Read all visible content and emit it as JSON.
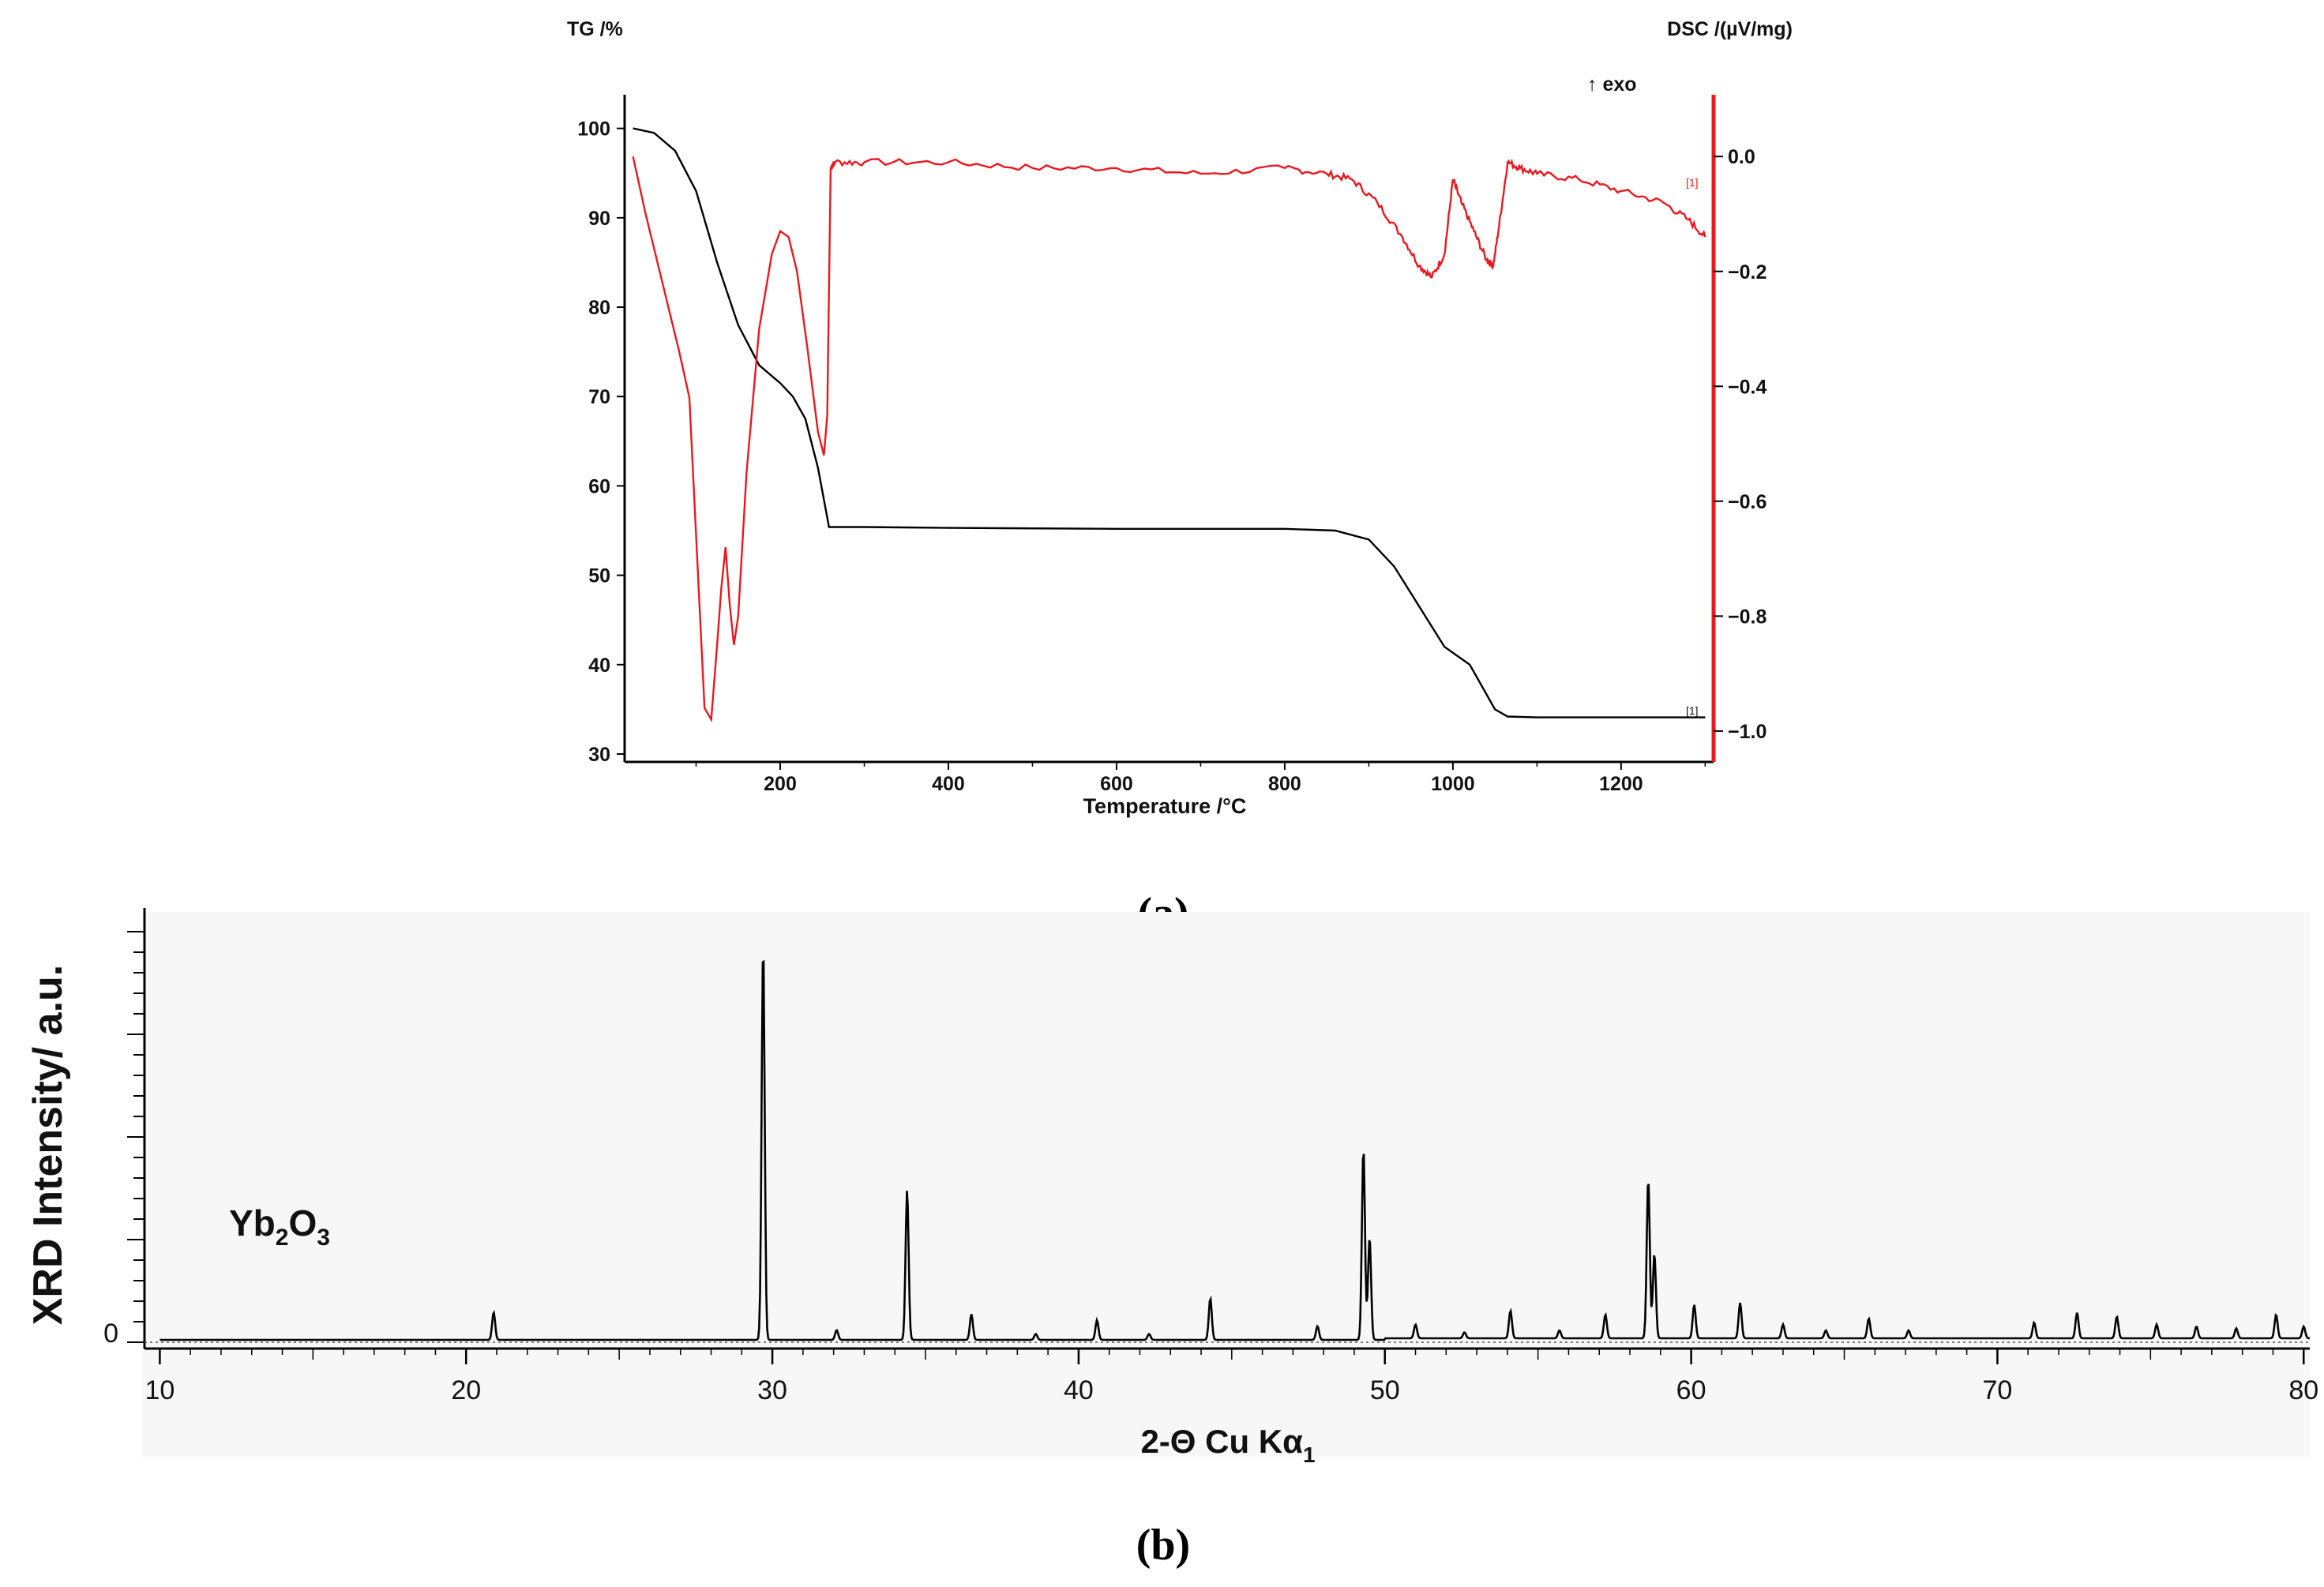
{
  "colors": {
    "tg": "#000000",
    "dsc": "#e8191f",
    "axis": "#000000",
    "xrd": "#000000"
  },
  "chart_data": [
    {
      "type": "line",
      "panel_label": "(a)",
      "xlabel": "Temperature /°C",
      "ylabel_left": "TG /%",
      "ylabel_right": "DSC /(µV/mg)",
      "annotation": "↑ exo",
      "curve_marker": "[1]",
      "xlim": [
        15,
        1310
      ],
      "x_ticks": [
        200,
        400,
        600,
        800,
        1000,
        1200
      ],
      "ylim_left": [
        30,
        102
      ],
      "y_ticks_left": [
        30,
        40,
        50,
        60,
        70,
        80,
        90,
        100
      ],
      "ylim_right": [
        -1.04,
        0.08
      ],
      "y_ticks_right": [
        0.0,
        -0.2,
        -0.4,
        -0.6,
        -0.8,
        -1.0
      ],
      "y_tick_labels_right": [
        "0.0",
        "−0.2",
        "−0.4",
        "−0.6",
        "−0.8",
        "−1.0"
      ],
      "series": [
        {
          "name": "TG",
          "axis": "left",
          "x": [
            25,
            50,
            75,
            100,
            125,
            150,
            175,
            200,
            215,
            230,
            245,
            258,
            300,
            400,
            600,
            800,
            860,
            900,
            930,
            960,
            990,
            1005,
            1020,
            1035,
            1050,
            1065,
            1100,
            1300
          ],
          "y": [
            100,
            99.5,
            97.5,
            93,
            85,
            78,
            73.5,
            71.5,
            70.0,
            67.5,
            62,
            55.4,
            55.4,
            55.3,
            55.2,
            55.2,
            55.0,
            54.0,
            51.0,
            46.5,
            42.0,
            41.0,
            40.0,
            37.5,
            35.0,
            34.2,
            34.1,
            34.1
          ]
        },
        {
          "name": "DSC",
          "axis": "right",
          "x": [
            25,
            40,
            60,
            80,
            92,
            100,
            110,
            118,
            125,
            130,
            135,
            140,
            145,
            150,
            160,
            175,
            190,
            200,
            210,
            220,
            232,
            245,
            252,
            256,
            260,
            265,
            300,
            400,
            500,
            600,
            700,
            800,
            850,
            880,
            910,
            940,
            960,
            975,
            990,
            1000,
            1010,
            1025,
            1040,
            1048,
            1055,
            1065,
            1080,
            1100,
            1150,
            1200,
            1250,
            1280,
            1300
          ],
          "y": [
            0.0,
            -0.1,
            -0.22,
            -0.34,
            -0.42,
            -0.66,
            -0.96,
            -0.98,
            -0.85,
            -0.75,
            -0.68,
            -0.78,
            -0.85,
            -0.8,
            -0.55,
            -0.3,
            -0.17,
            -0.13,
            -0.14,
            -0.2,
            -0.33,
            -0.48,
            -0.52,
            -0.45,
            -0.02,
            -0.01,
            -0.01,
            -0.01,
            -0.02,
            -0.02,
            -0.03,
            -0.02,
            -0.03,
            -0.04,
            -0.08,
            -0.14,
            -0.19,
            -0.21,
            -0.17,
            -0.04,
            -0.08,
            -0.13,
            -0.18,
            -0.19,
            -0.12,
            -0.01,
            -0.02,
            -0.03,
            -0.04,
            -0.06,
            -0.08,
            -0.11,
            -0.14
          ]
        }
      ]
    },
    {
      "type": "line",
      "panel_label": "(b)",
      "xlabel": "2-Θ Cu Kα",
      "xlabel_subscript": "1",
      "ylabel": "XRD Intensity/ a.u.",
      "annotation": "Yb",
      "annotation_sub1": "2",
      "annotation_mid": "O",
      "annotation_sub2": "3",
      "y_zero_label": "0",
      "xlim": [
        9.5,
        80.2
      ],
      "x_ticks": [
        10,
        20,
        30,
        40,
        50,
        60,
        70,
        80
      ],
      "ylim": [
        0,
        100
      ],
      "peaks": [
        {
          "x": 20.9,
          "y": 7
        },
        {
          "x": 29.7,
          "y": 100
        },
        {
          "x": 32.1,
          "y": 2.5
        },
        {
          "x": 34.4,
          "y": 38
        },
        {
          "x": 36.5,
          "y": 6.5
        },
        {
          "x": 38.6,
          "y": 1.5
        },
        {
          "x": 40.6,
          "y": 5
        },
        {
          "x": 42.3,
          "y": 1.5
        },
        {
          "x": 44.3,
          "y": 10.5
        },
        {
          "x": 47.8,
          "y": 3.5
        },
        {
          "x": 49.3,
          "y": 48.5
        },
        {
          "x": 49.5,
          "y": 26
        },
        {
          "x": 51.0,
          "y": 3.5
        },
        {
          "x": 52.6,
          "y": 1.5
        },
        {
          "x": 54.1,
          "y": 7
        },
        {
          "x": 55.7,
          "y": 2
        },
        {
          "x": 57.2,
          "y": 6
        },
        {
          "x": 58.6,
          "y": 40.5
        },
        {
          "x": 58.8,
          "y": 21.5
        },
        {
          "x": 60.1,
          "y": 8.5
        },
        {
          "x": 61.6,
          "y": 9
        },
        {
          "x": 63.0,
          "y": 3.5
        },
        {
          "x": 64.4,
          "y": 2
        },
        {
          "x": 65.8,
          "y": 5
        },
        {
          "x": 67.1,
          "y": 2
        },
        {
          "x": 71.2,
          "y": 4
        },
        {
          "x": 72.6,
          "y": 6.5
        },
        {
          "x": 73.9,
          "y": 5.5
        },
        {
          "x": 75.2,
          "y": 3.5
        },
        {
          "x": 76.5,
          "y": 3
        },
        {
          "x": 77.8,
          "y": 2.5
        },
        {
          "x": 79.1,
          "y": 6
        },
        {
          "x": 80.0,
          "y": 3
        }
      ]
    }
  ]
}
